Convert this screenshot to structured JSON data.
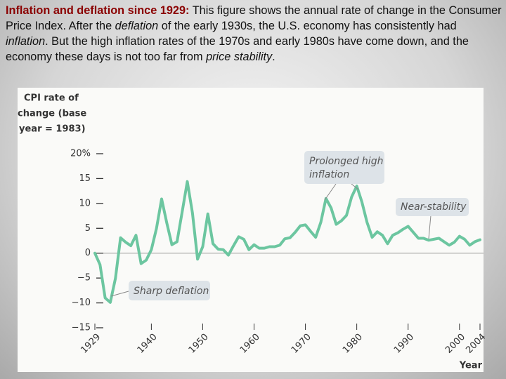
{
  "caption": [
    "Inflation and deflation since 1929:",
    " This figure shows the annual rate of change in the Consumer Price Index. After the ",
    "deflation",
    " of the early 1930s, the U.S. economy has consistently had ",
    "inflation",
    ". But the high inflation rates of the 1970s and early 1980s have come down, and the economy these days is not too far from ",
    "price stability",
    "."
  ],
  "chart_data": {
    "type": "line",
    "ylabel": [
      "CPI rate of",
      "change (base",
      "year = 1983)"
    ],
    "xlabel": "Year",
    "x": [
      1929,
      1930,
      1931,
      1932,
      1933,
      1934,
      1935,
      1936,
      1937,
      1938,
      1939,
      1940,
      1941,
      1942,
      1943,
      1944,
      1945,
      1946,
      1947,
      1948,
      1949,
      1950,
      1951,
      1952,
      1953,
      1954,
      1955,
      1956,
      1957,
      1958,
      1959,
      1960,
      1961,
      1962,
      1963,
      1964,
      1965,
      1966,
      1967,
      1968,
      1969,
      1970,
      1971,
      1972,
      1973,
      1974,
      1975,
      1976,
      1977,
      1978,
      1979,
      1980,
      1981,
      1982,
      1983,
      1984,
      1985,
      1986,
      1987,
      1988,
      1989,
      1990,
      1991,
      1992,
      1993,
      1994,
      1995,
      1996,
      1997,
      1998,
      1999,
      2000,
      2001,
      2002,
      2003,
      2004
    ],
    "values": [
      0,
      -2.3,
      -9,
      -9.9,
      -5.1,
      3.1,
      2.2,
      1.5,
      3.6,
      -2.1,
      -1.4,
      0.7,
      5,
      10.9,
      6.1,
      1.7,
      2.3,
      8.3,
      14.4,
      8.1,
      -1.2,
      1.3,
      7.9,
      1.9,
      0.8,
      0.7,
      -0.4,
      1.5,
      3.3,
      2.8,
      0.7,
      1.7,
      1,
      1,
      1.3,
      1.3,
      1.6,
      2.9,
      3.1,
      4.2,
      5.5,
      5.7,
      4.4,
      3.2,
      6.2,
      11,
      9.1,
      5.8,
      6.5,
      7.6,
      11.3,
      13.5,
      10.3,
      6.2,
      3.2,
      4.3,
      3.6,
      1.9,
      3.6,
      4.1,
      4.8,
      5.4,
      4.2,
      3,
      3,
      2.6,
      2.8,
      3,
      2.3,
      1.6,
      2.2,
      3.4,
      2.8,
      1.6,
      2.3,
      2.7
    ],
    "color": "#6cc6a0",
    "xlim": [
      1929,
      2004
    ],
    "xticks": [
      1929,
      1940,
      1950,
      1960,
      1970,
      1980,
      1990,
      2000,
      2004
    ],
    "ylim": [
      -15,
      20
    ],
    "yticks": [
      {
        "value": -15,
        "label": "−15"
      },
      {
        "value": -10,
        "label": "−10"
      },
      {
        "value": -5,
        "label": "−5"
      },
      0,
      5,
      10,
      15,
      {
        "value": 20,
        "label": "20%"
      }
    ],
    "annotations": [
      [
        "Sharp deflation"
      ],
      [
        "Prolonged high",
        "inflation"
      ],
      [
        "Near-stability"
      ]
    ]
  }
}
